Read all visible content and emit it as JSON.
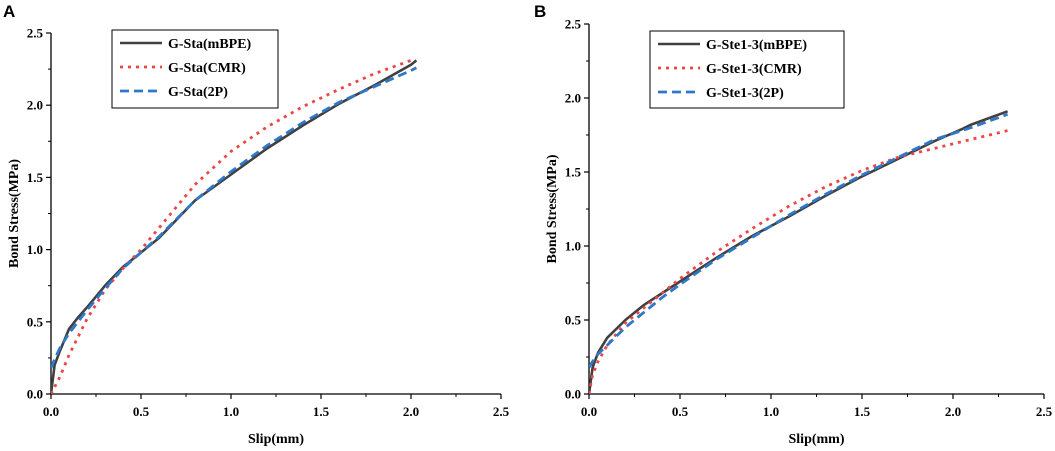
{
  "chart_data": [
    {
      "type": "line",
      "panel_label": "A",
      "xlabel": "Slip(mm)",
      "ylabel": "Bond Stress(MPa)",
      "xlim": [
        0,
        2.5
      ],
      "ylim": [
        0,
        2.5
      ],
      "xticks": [
        "0.0",
        "0.5",
        "1.0",
        "1.5",
        "2.0",
        "2.5"
      ],
      "yticks": [
        "0.0",
        "0.5",
        "1.0",
        "1.5",
        "2.0",
        "2.5"
      ],
      "legend_position": "top-left",
      "series": [
        {
          "name": "G-Sta(mBPE)",
          "color": "#404040",
          "style": "solid",
          "x": [
            0,
            0.02,
            0.05,
            0.1,
            0.15,
            0.2,
            0.3,
            0.4,
            0.5,
            0.6,
            0.8,
            1.0,
            1.2,
            1.4,
            1.6,
            1.8,
            2.0,
            2.03
          ],
          "y": [
            0,
            0.2,
            0.3,
            0.45,
            0.53,
            0.6,
            0.75,
            0.88,
            0.98,
            1.08,
            1.34,
            1.52,
            1.7,
            1.86,
            2.01,
            2.14,
            2.28,
            2.31
          ]
        },
        {
          "name": "G-Sta(CMR)",
          "color": "#ee4444",
          "style": "dot",
          "x": [
            0,
            0.05,
            0.1,
            0.2,
            0.3,
            0.4,
            0.5,
            0.6,
            0.8,
            1.0,
            1.2,
            1.4,
            1.6,
            1.8,
            2.0
          ],
          "y": [
            0,
            0.12,
            0.27,
            0.52,
            0.72,
            0.87,
            1.0,
            1.15,
            1.45,
            1.68,
            1.85,
            1.99,
            2.11,
            2.22,
            2.31
          ]
        },
        {
          "name": "G-Sta(2P)",
          "color": "#2f78c9",
          "style": "dash",
          "x": [
            0,
            0.02,
            0.05,
            0.1,
            0.2,
            0.3,
            0.4,
            0.5,
            0.6,
            0.8,
            1.0,
            1.2,
            1.4,
            1.6,
            1.8,
            2.0,
            2.03
          ],
          "y": [
            0.18,
            0.24,
            0.32,
            0.42,
            0.58,
            0.73,
            0.87,
            0.98,
            1.09,
            1.34,
            1.54,
            1.72,
            1.88,
            2.02,
            2.13,
            2.24,
            2.26
          ]
        }
      ]
    },
    {
      "type": "line",
      "panel_label": "B",
      "xlabel": "Slip(mm)",
      "ylabel": "Bond Stress(MPa)",
      "xlim": [
        0,
        2.5
      ],
      "ylim": [
        0,
        2.5
      ],
      "xticks": [
        "0.0",
        "0.5",
        "1.0",
        "1.5",
        "2.0",
        "2.5"
      ],
      "yticks": [
        "0.0",
        "0.5",
        "1.0",
        "1.5",
        "2.0",
        "2.5"
      ],
      "legend_position": "top-left",
      "series": [
        {
          "name": "G-Ste1-3(mBPE)",
          "color": "#404040",
          "style": "solid",
          "x": [
            0,
            0.02,
            0.05,
            0.1,
            0.2,
            0.3,
            0.4,
            0.5,
            0.7,
            0.9,
            1.1,
            1.3,
            1.5,
            1.7,
            1.9,
            2.05,
            2.1,
            2.3
          ],
          "y": [
            0,
            0.18,
            0.28,
            0.38,
            0.5,
            0.6,
            0.68,
            0.76,
            0.92,
            1.07,
            1.2,
            1.34,
            1.47,
            1.59,
            1.71,
            1.79,
            1.82,
            1.91
          ]
        },
        {
          "name": "G-Ste1-3(CMR)",
          "color": "#ee4444",
          "style": "dot",
          "x": [
            0,
            0.02,
            0.05,
            0.1,
            0.2,
            0.3,
            0.4,
            0.5,
            0.7,
            0.9,
            1.1,
            1.3,
            1.5,
            1.7,
            1.9,
            2.1,
            2.3
          ],
          "y": [
            0,
            0.13,
            0.22,
            0.33,
            0.48,
            0.58,
            0.68,
            0.78,
            0.96,
            1.12,
            1.27,
            1.4,
            1.51,
            1.6,
            1.66,
            1.72,
            1.78
          ]
        },
        {
          "name": "G-Ste1-3(2P)",
          "color": "#2f78c9",
          "style": "dash",
          "x": [
            0,
            0.02,
            0.05,
            0.1,
            0.2,
            0.3,
            0.4,
            0.5,
            0.7,
            0.9,
            1.1,
            1.3,
            1.5,
            1.7,
            1.9,
            2.1,
            2.3
          ],
          "y": [
            0.18,
            0.22,
            0.27,
            0.33,
            0.45,
            0.55,
            0.65,
            0.74,
            0.91,
            1.06,
            1.21,
            1.35,
            1.48,
            1.6,
            1.72,
            1.8,
            1.89
          ]
        }
      ]
    }
  ]
}
